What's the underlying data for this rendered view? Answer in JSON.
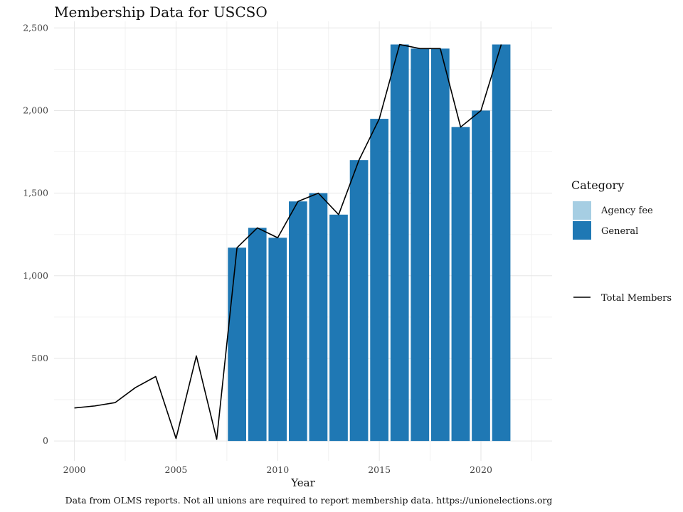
{
  "chart_data": {
    "type": "bar",
    "title": "Membership Data for USCSO",
    "xlabel": "Year",
    "ylabel": "",
    "xlim": [
      1999,
      2023.5
    ],
    "ylim": [
      -120,
      2540
    ],
    "x_ticks": [
      2000,
      2005,
      2010,
      2015,
      2020
    ],
    "x_tick_labels": [
      "2000",
      "2005",
      "2010",
      "2015",
      "2020"
    ],
    "y_ticks": [
      0,
      500,
      1000,
      1500,
      2000,
      2500
    ],
    "y_tick_labels": [
      "0",
      "500",
      "1,000",
      "1,500",
      "2,000",
      "2,500"
    ],
    "grid": true,
    "legend_position": "right",
    "legend": {
      "title": "Category",
      "entries": [
        {
          "label": "Agency fee",
          "color": "#a6cee3"
        },
        {
          "label": "General",
          "color": "#1f78b4"
        }
      ],
      "line_label": "Total Members"
    },
    "series": [
      {
        "name": "General",
        "kind": "bar",
        "color": "#1f78b4",
        "x": [
          2008,
          2009,
          2010,
          2011,
          2012,
          2013,
          2014,
          2015,
          2016,
          2017,
          2018,
          2019,
          2020,
          2021
        ],
        "values": [
          1170,
          1290,
          1230,
          1450,
          1500,
          1370,
          1700,
          1950,
          2400,
          2375,
          2375,
          1900,
          2000,
          2400
        ]
      },
      {
        "name": "Agency fee",
        "kind": "bar",
        "color": "#a6cee3",
        "x": [],
        "values": []
      },
      {
        "name": "Total Members",
        "kind": "line",
        "color": "#000000",
        "x": [
          2000,
          2001,
          2002,
          2003,
          2004,
          2005,
          2006,
          2007,
          2008,
          2009,
          2010,
          2011,
          2012,
          2013,
          2014,
          2015,
          2016,
          2017,
          2018,
          2019,
          2020,
          2021
        ],
        "values": [
          200,
          212,
          232,
          323,
          390,
          15,
          515,
          10,
          1170,
          1290,
          1230,
          1450,
          1500,
          1370,
          1700,
          1950,
          2400,
          2375,
          2375,
          1900,
          2000,
          2400
        ]
      }
    ],
    "caption": "Data from OLMS reports. Not all unions are required to report membership data. https://unionelections.org"
  }
}
